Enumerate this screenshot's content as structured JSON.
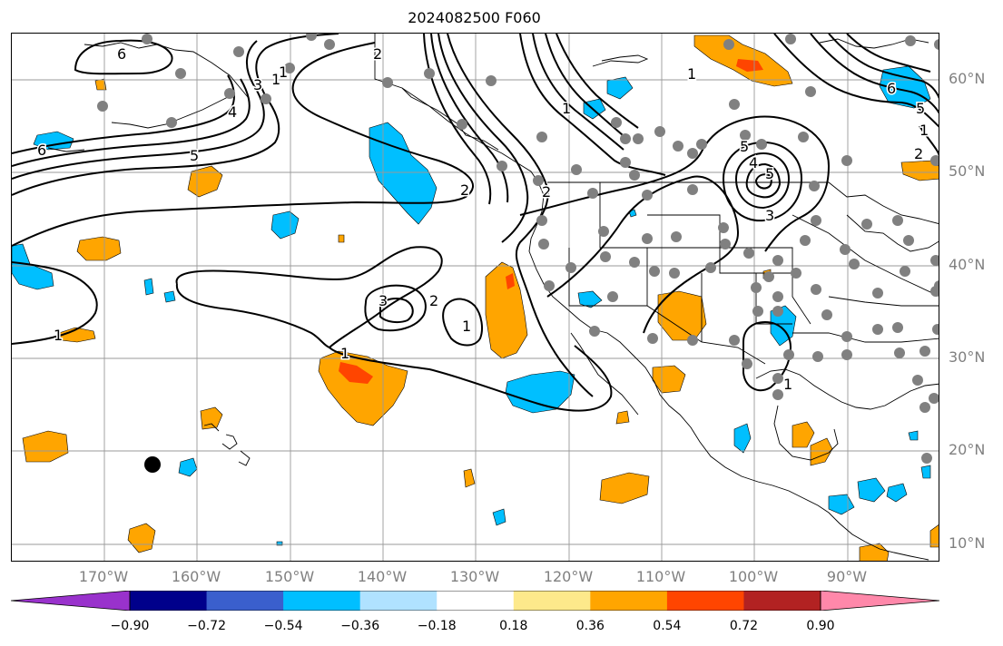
{
  "title": "2024082500 F060",
  "lat_labels": [
    "60°N",
    "50°N",
    "40°N",
    "30°N",
    "20°N",
    "10°N"
  ],
  "lon_labels": [
    "170°W",
    "160°W",
    "150°W",
    "140°W",
    "130°W",
    "120°W",
    "110°W",
    "100°W",
    "90°W"
  ],
  "colorbar": {
    "colors": [
      "#9932cc",
      "#00008b",
      "#3a5fcd",
      "#00bfff",
      "#b0e2ff",
      "#ffffff",
      "#fde98b",
      "#ffa500",
      "#ff4500",
      "#b22222",
      "#ff88aa"
    ],
    "tick_labels": [
      "−0.90",
      "−0.72",
      "−0.54",
      "−0.36",
      "−0.18",
      "0.18",
      "0.36",
      "0.54",
      "0.72",
      "0.90"
    ]
  },
  "contour_labels": [
    "6",
    "5",
    "4",
    "3",
    "2",
    "1",
    "2",
    "1",
    "1",
    "2",
    "5",
    "6",
    "3",
    "1",
    "1",
    "5",
    "4",
    "3",
    "2",
    "1",
    "1",
    "1",
    "1",
    "2",
    "6",
    "5"
  ],
  "colors": {
    "positive": "#ffa500",
    "strong_positive": "#ff4500",
    "negative": "#00bfff",
    "station": "#808080"
  }
}
